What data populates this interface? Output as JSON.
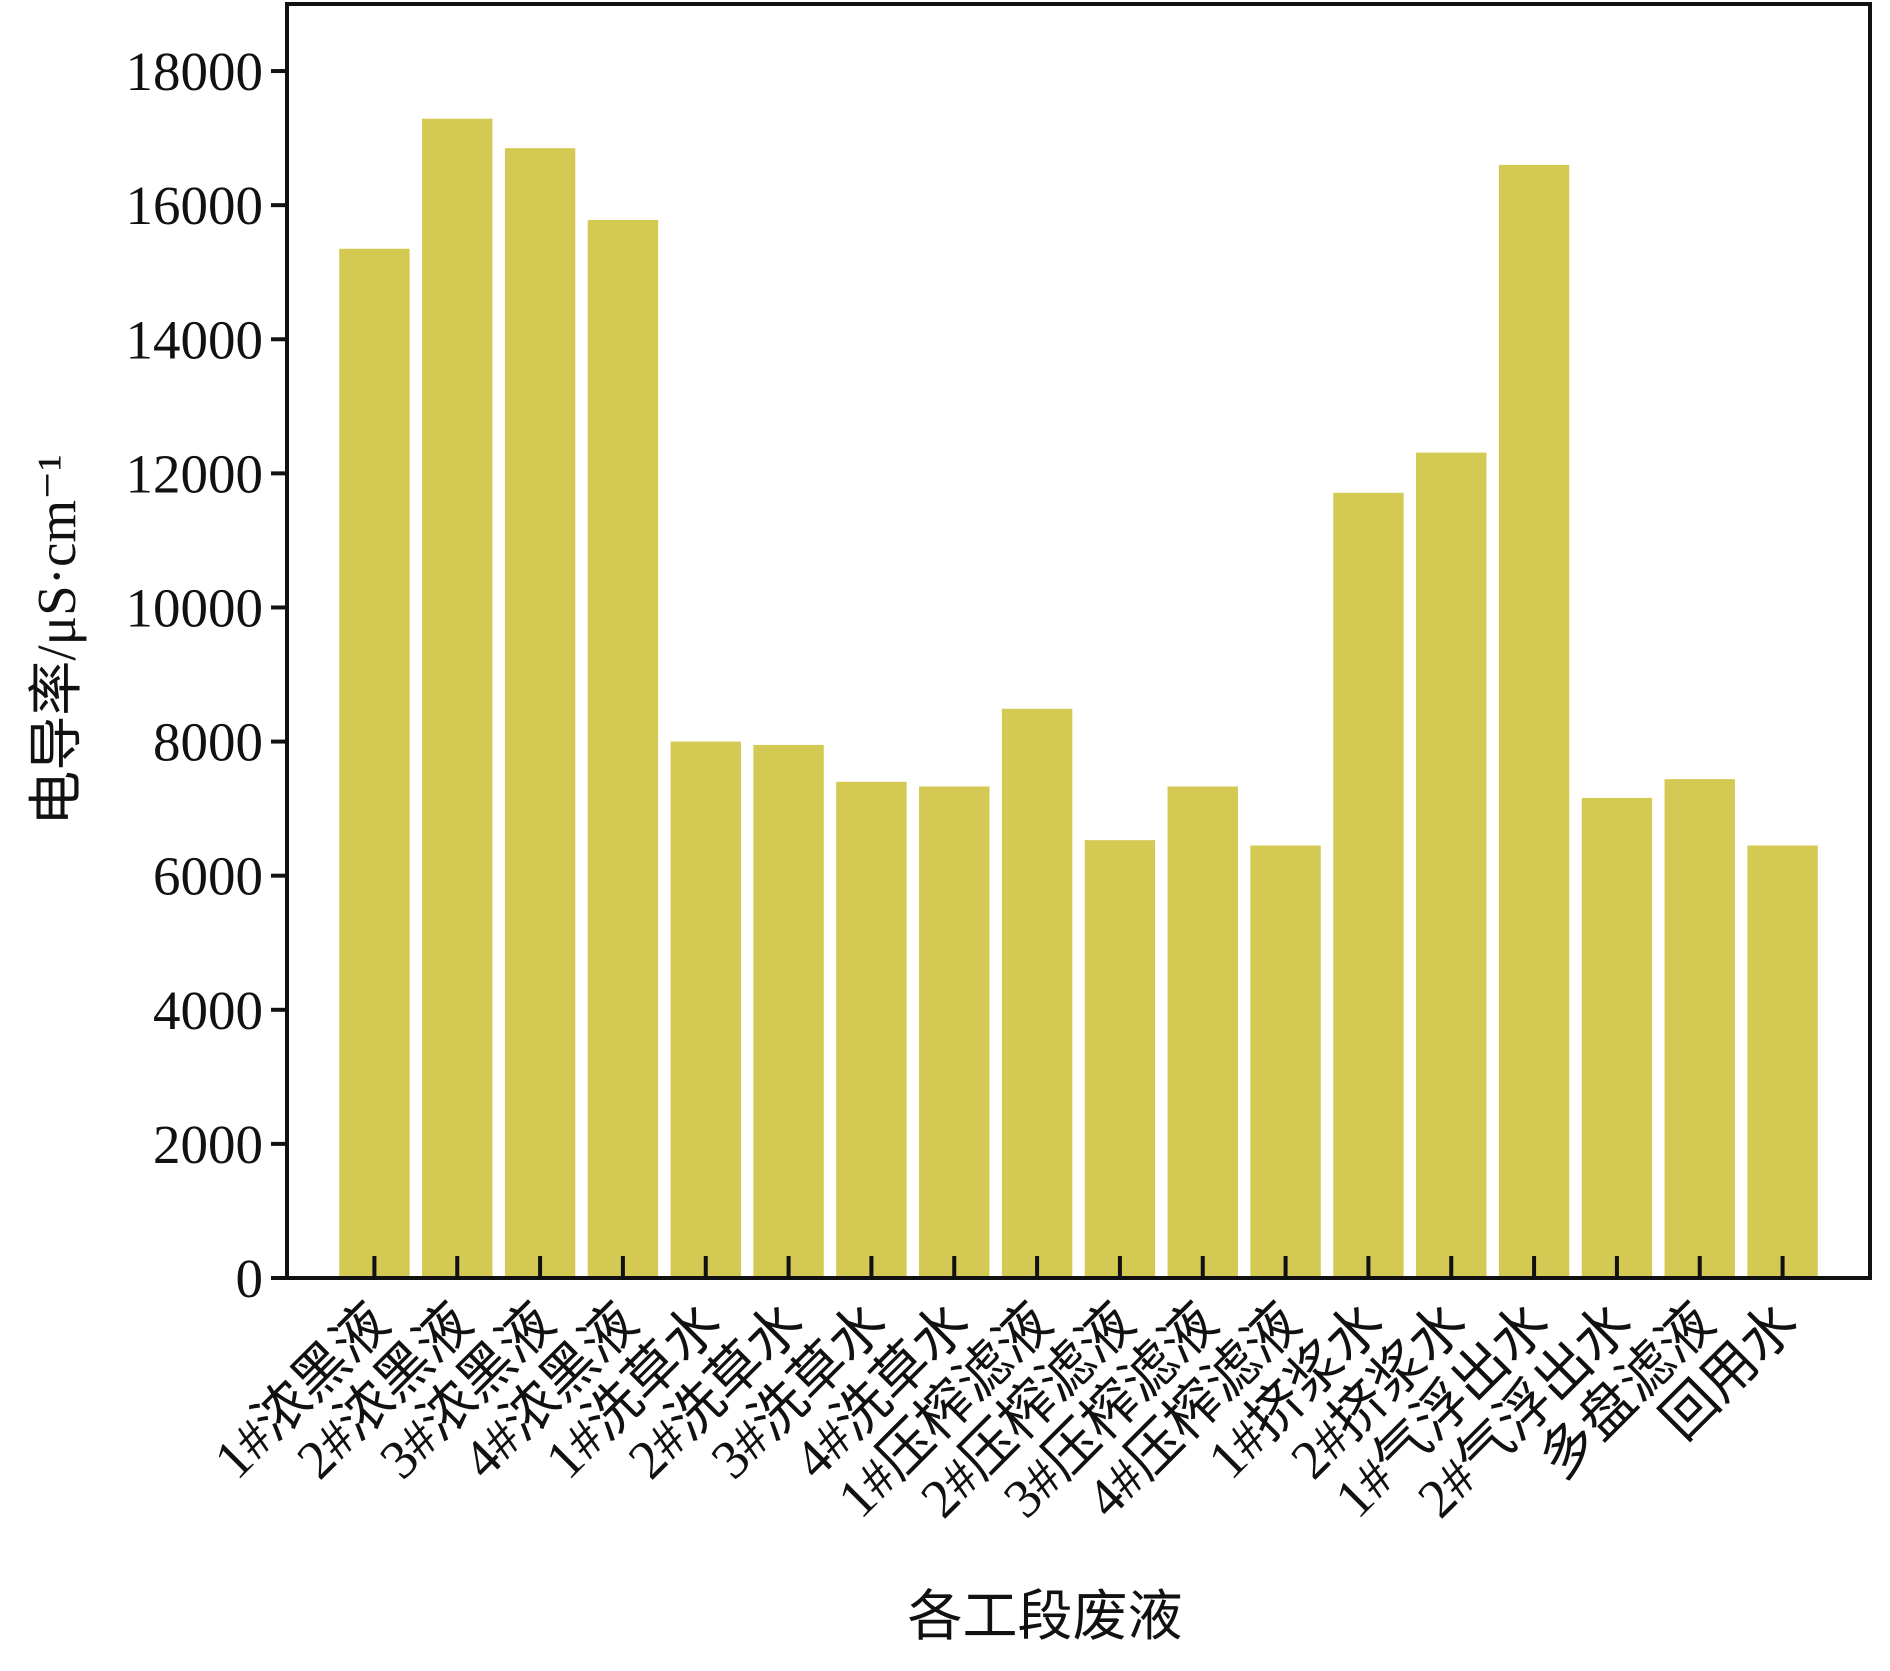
{
  "chart_data": {
    "type": "bar",
    "x_label": "各工段废液",
    "y_label": "电导率/μS·cm⁻¹",
    "categories": [
      "1#浓黑液",
      "2#浓黑液",
      "3#浓黑液",
      "4#浓黑液",
      "1#洗草水",
      "2#洗草水",
      "3#洗草水",
      "4#洗草水",
      "1#压榨滤液",
      "2#压榨滤液",
      "3#压榨滤液",
      "4#压榨滤液",
      "1#挤浆水",
      "2#挤浆水",
      "1#气浮出水",
      "2#气浮出水",
      "多盘滤液",
      "回用水"
    ],
    "values": [
      15350,
      17290,
      16850,
      15780,
      8000,
      7950,
      7400,
      7330,
      8490,
      6530,
      7330,
      6450,
      11710,
      12310,
      16600,
      7160,
      7440,
      6450
    ],
    "color": "#d4c952",
    "ylim": [
      0,
      19000
    ],
    "yticks": [
      0,
      2000,
      4000,
      6000,
      8000,
      10000,
      12000,
      14000,
      16000,
      18000
    ]
  }
}
